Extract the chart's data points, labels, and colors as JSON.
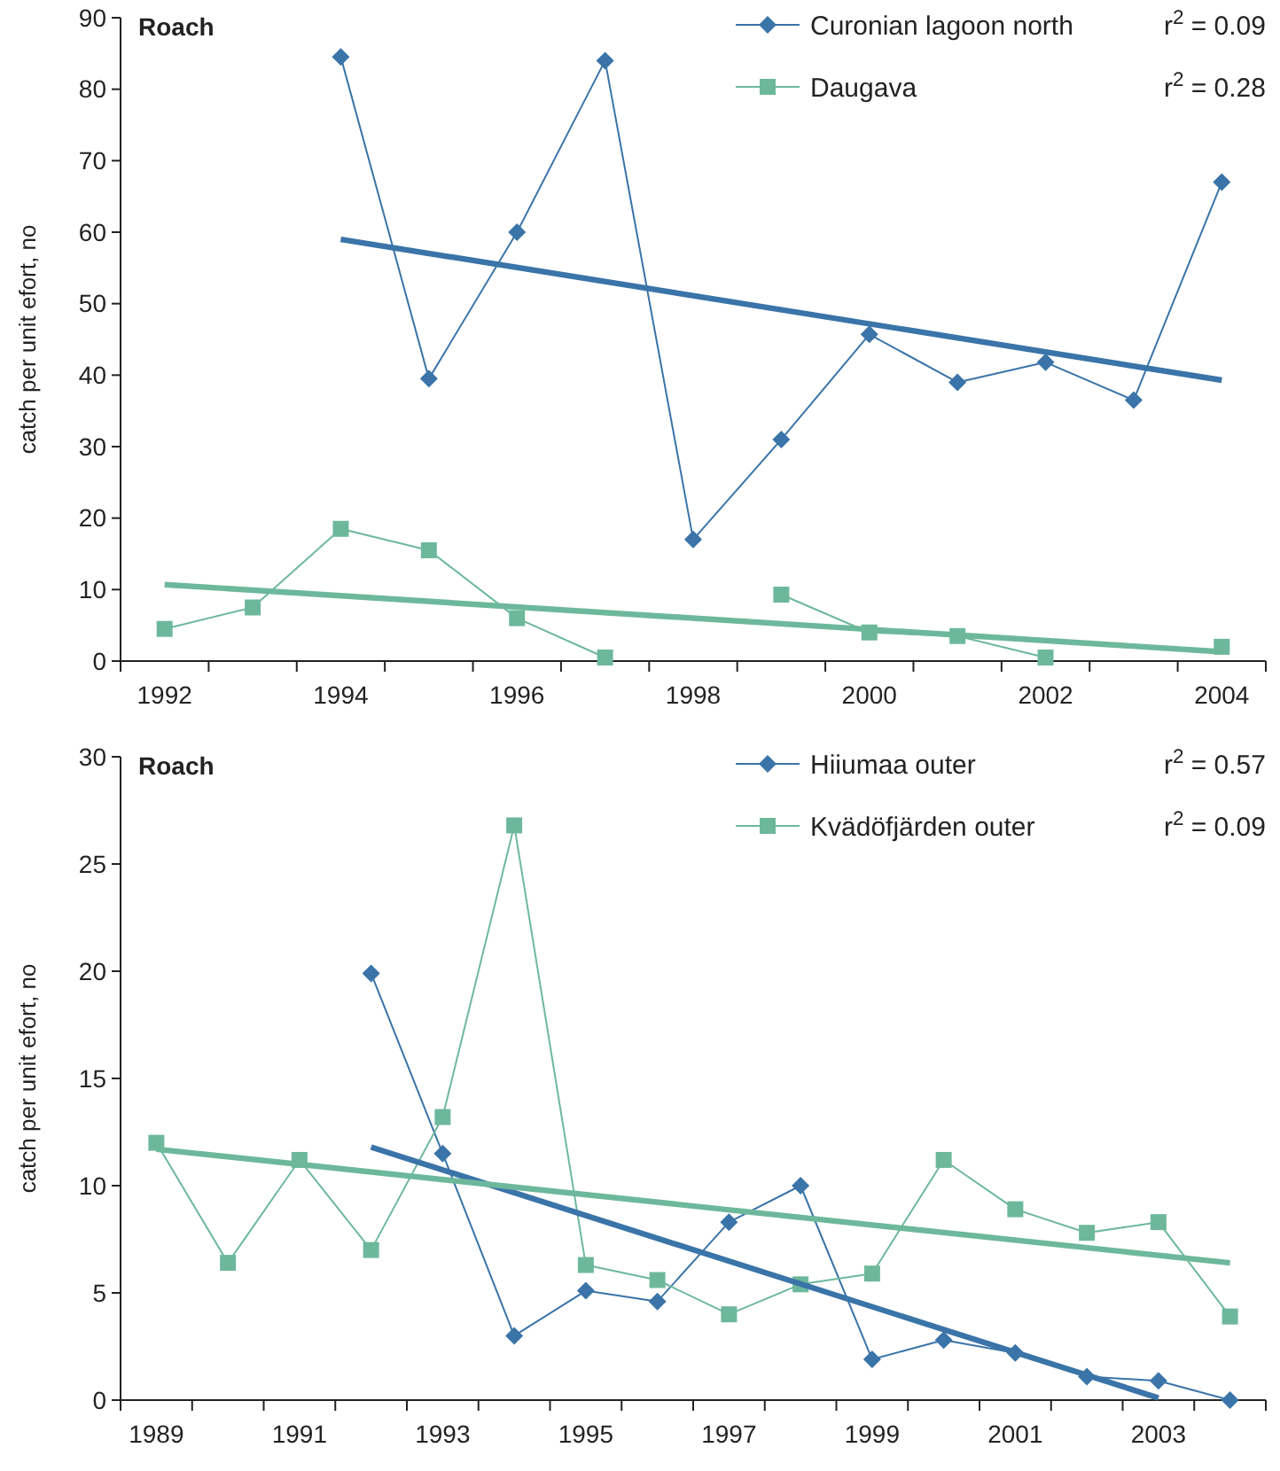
{
  "chart_data": [
    {
      "type": "line",
      "title": "Roach",
      "ylabel": "catch per unit efort, no",
      "categories": [
        "1992",
        null,
        "1994",
        null,
        "1996",
        null,
        "1998",
        null,
        "2000",
        null,
        "2002",
        null,
        "2004"
      ],
      "ylim": [
        0,
        90
      ],
      "yticks": [
        0,
        10,
        20,
        30,
        40,
        50,
        60,
        70,
        80,
        90
      ],
      "legend": "top right",
      "grid": false,
      "series": [
        {
          "name": "Curonian lagoon north",
          "color": "#3a74a8",
          "marker": "diamond",
          "values": [
            null,
            null,
            84.5,
            39.5,
            60,
            84,
            17,
            31,
            45.7,
            39,
            41.8,
            36.5,
            67
          ]
        },
        {
          "name": "Daugava",
          "color": "#6db89c",
          "marker": "square",
          "values": [
            4.5,
            7.5,
            18.5,
            15.5,
            6,
            0.5,
            null,
            9.3,
            4,
            3.5,
            0.5,
            null,
            2
          ]
        },
        {
          "color": "#3a74a8",
          "marker": "none",
          "values": [
            null,
            null,
            59,
            null,
            null,
            null,
            null,
            null,
            null,
            null,
            null,
            null,
            39.3
          ]
        },
        {
          "color": "#6db89c",
          "marker": "none",
          "values": [
            10.7,
            null,
            null,
            null,
            null,
            null,
            null,
            null,
            null,
            null,
            null,
            null,
            1.3
          ]
        }
      ],
      "annotations": [
        "r$^{2}$ = 0.09",
        "r$^{2}$ = 0.28"
      ]
    },
    {
      "type": "line",
      "title": "Roach",
      "ylabel": "catch per unit efort, no",
      "categories": [
        "1989",
        null,
        "1991",
        null,
        "1993",
        null,
        "1995",
        null,
        "1997",
        null,
        "1999",
        null,
        "2001",
        null,
        "2003",
        null
      ],
      "ylim": [
        0,
        30
      ],
      "yticks": [
        0,
        5,
        10,
        15,
        20,
        25,
        30
      ],
      "legend": "top right",
      "grid": false,
      "series": [
        {
          "name": "Hiiumaa outer",
          "color": "#3a74a8",
          "marker": "diamond",
          "values": [
            null,
            null,
            null,
            19.9,
            11.5,
            3.0,
            5.1,
            4.6,
            8.3,
            10.0,
            1.9,
            2.8,
            2.2,
            1.1,
            0.9,
            0.0
          ]
        },
        {
          "name": "Kvädöfjärden outer",
          "color": "#6db89c",
          "marker": "square",
          "values": [
            12.0,
            6.4,
            11.2,
            7.0,
            13.2,
            26.8,
            6.3,
            5.6,
            4.0,
            5.4,
            5.9,
            11.2,
            8.9,
            7.8,
            8.3,
            3.9
          ]
        },
        {
          "color": "#3a74a8",
          "marker": "none",
          "values": [
            null,
            null,
            null,
            11.8,
            null,
            null,
            null,
            null,
            null,
            null,
            null,
            null,
            null,
            null,
            0.1,
            null
          ]
        },
        {
          "color": "#6db89c",
          "marker": "none",
          "values": [
            11.7,
            null,
            null,
            null,
            null,
            null,
            null,
            null,
            null,
            null,
            null,
            null,
            null,
            null,
            null,
            6.4
          ]
        }
      ],
      "annotations": [
        "r$^{2}$ = 0.57",
        "r$^{2}$ = 0.09"
      ]
    }
  ]
}
